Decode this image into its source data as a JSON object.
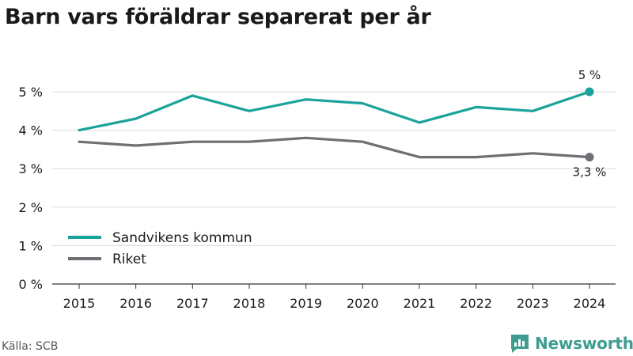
{
  "title": "Barn vars föräldrar separerat per år",
  "source": "Källa: SCB",
  "brand": {
    "name": "Newsworthy",
    "color": "#3e9d8f"
  },
  "chart_data": {
    "type": "line",
    "x": [
      "2015",
      "2016",
      "2017",
      "2018",
      "2019",
      "2020",
      "2021",
      "2022",
      "2023",
      "2024"
    ],
    "ylim": [
      0,
      5.5
    ],
    "yticks": [
      0,
      1,
      2,
      3,
      4,
      5
    ],
    "ytick_labels": [
      "0 %",
      "1 %",
      "2 %",
      "3 %",
      "4 %",
      "5 %"
    ],
    "grid": true,
    "legend_position": "lower-left",
    "series": [
      {
        "name": "Sandvikens kommun",
        "color": "#1aa39a",
        "values": [
          4.0,
          4.3,
          4.9,
          4.5,
          4.8,
          4.7,
          4.2,
          4.6,
          4.5,
          5.0
        ],
        "end_label": "5 %"
      },
      {
        "name": "Riket",
        "color": "#6e6e74",
        "values": [
          3.7,
          3.6,
          3.7,
          3.7,
          3.8,
          3.7,
          3.3,
          3.3,
          3.4,
          3.3
        ],
        "end_label": "3,3 %"
      }
    ]
  }
}
